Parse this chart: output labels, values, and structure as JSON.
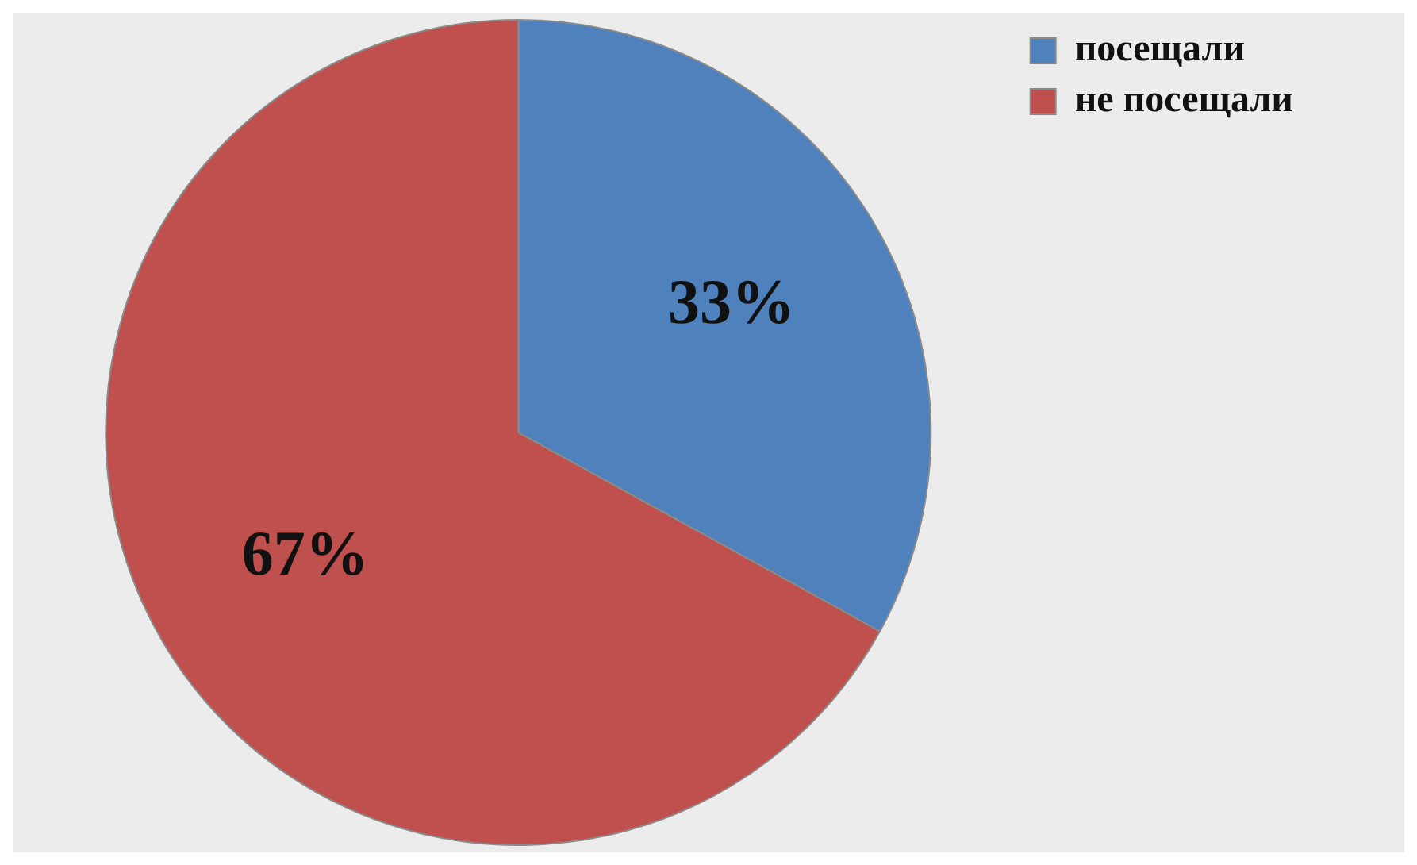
{
  "chart_data": {
    "type": "pie",
    "categories": [
      "посещали",
      "не посещали"
    ],
    "values": [
      33,
      67
    ],
    "colors": [
      "#4f81bd",
      "#c0504d"
    ],
    "value_labels": [
      "33%",
      "67%"
    ],
    "legend": "right"
  }
}
